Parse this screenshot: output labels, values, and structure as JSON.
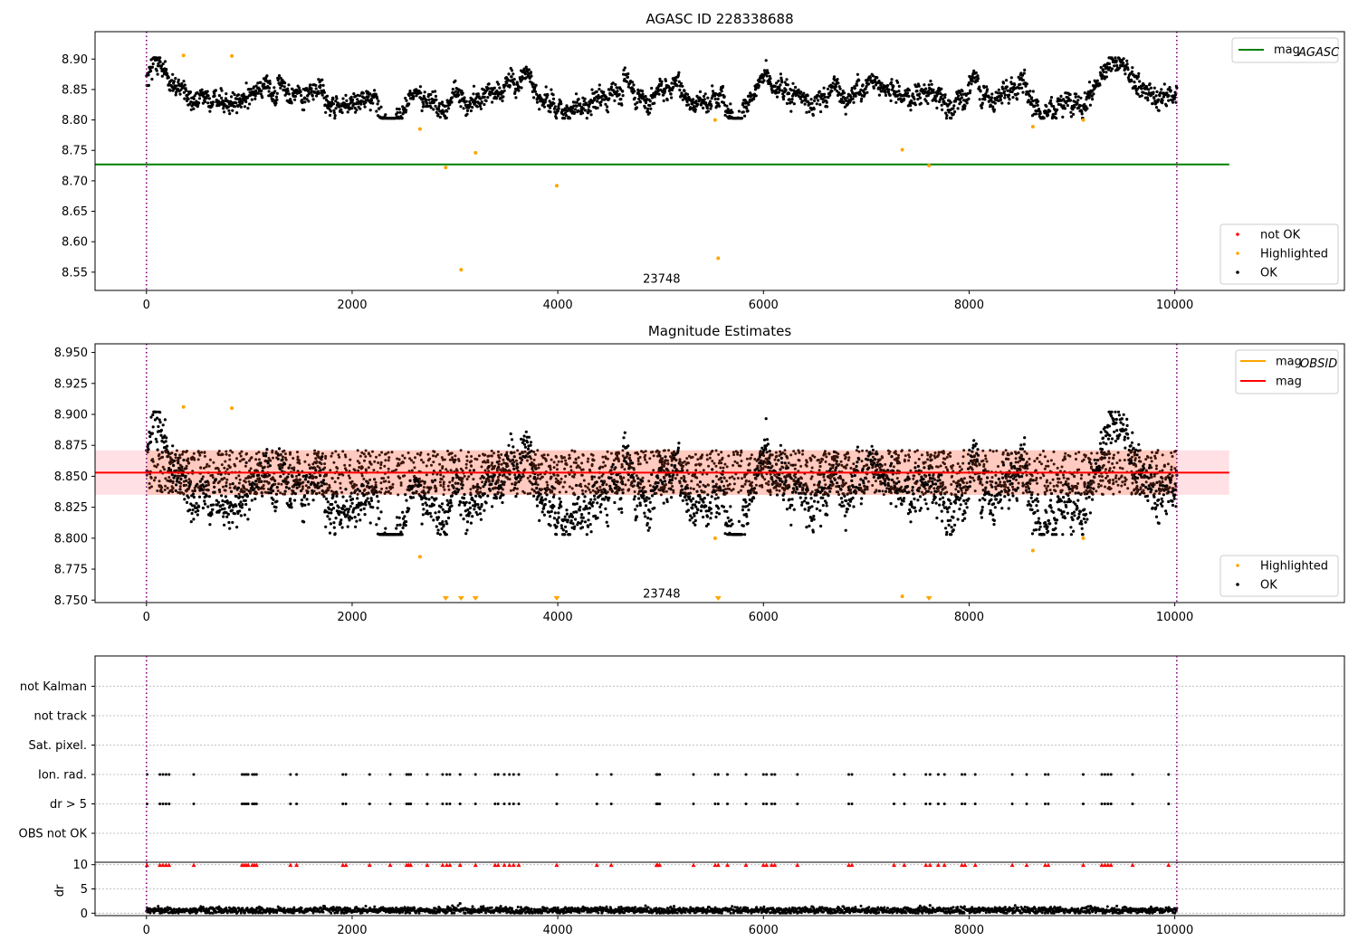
{
  "chart_data": [
    {
      "panel": "top",
      "type": "scatter",
      "title": "AGASC ID 228338688",
      "xlim": [
        -500,
        11650
      ],
      "ylim": [
        8.52,
        8.945
      ],
      "xticks": [
        0,
        2000,
        4000,
        6000,
        8000,
        10000
      ],
      "yticks": [
        8.55,
        8.6,
        8.65,
        8.7,
        8.75,
        8.8,
        8.85,
        8.9
      ],
      "ytick_labels": [
        "8.55",
        "8.60",
        "8.65",
        "8.70",
        "8.75",
        "8.80",
        "8.85",
        "8.90"
      ],
      "obsid_boundaries": [
        0,
        10020
      ],
      "annotation": {
        "text": "23748",
        "x": 5010,
        "y": 8.54
      },
      "mag_agasc": {
        "value": 8.727,
        "x_range": [
          -500,
          10530
        ],
        "color": "#008000"
      },
      "ok_series": {
        "color": "#000000",
        "x_range": [
          0,
          10020
        ],
        "level": 8.855,
        "spread": 0.022
      },
      "highlighted_points": [
        {
          "x": 360,
          "y": 8.906
        },
        {
          "x": 830,
          "y": 8.905
        },
        {
          "x": 2660,
          "y": 8.785
        },
        {
          "x": 2910,
          "y": 8.722
        },
        {
          "x": 3060,
          "y": 8.554
        },
        {
          "x": 3200,
          "y": 8.746
        },
        {
          "x": 3990,
          "y": 8.692
        },
        {
          "x": 5530,
          "y": 8.8
        },
        {
          "x": 5560,
          "y": 8.573
        },
        {
          "x": 7350,
          "y": 8.751
        },
        {
          "x": 7610,
          "y": 8.725
        },
        {
          "x": 8620,
          "y": 8.789
        },
        {
          "x": 9110,
          "y": 8.8
        }
      ],
      "legend_series": {
        "label_main": "mag",
        "label_sub": "AGASC"
      },
      "legend_points": [
        {
          "label": "not OK",
          "color": "#ff0000"
        },
        {
          "label": "Highlighted",
          "color": "#ffa500"
        },
        {
          "label": "OK",
          "color": "#000000"
        }
      ]
    },
    {
      "panel": "middle",
      "type": "scatter",
      "title": "Magnitude Estimates",
      "xlim": [
        -500,
        11650
      ],
      "ylim": [
        8.748,
        8.957
      ],
      "xticks": [
        0,
        2000,
        4000,
        6000,
        8000,
        10000
      ],
      "yticks": [
        8.75,
        8.775,
        8.8,
        8.825,
        8.85,
        8.875,
        8.9,
        8.925,
        8.95
      ],
      "ytick_labels": [
        "8.750",
        "8.775",
        "8.800",
        "8.825",
        "8.850",
        "8.875",
        "8.900",
        "8.925",
        "8.950"
      ],
      "obsid_boundaries": [
        0,
        10020
      ],
      "annotation": {
        "text": "23748",
        "x": 5010,
        "y": 8.7555
      },
      "mag": {
        "value": 8.853,
        "x_range": [
          -500,
          10530
        ],
        "color": "#ff0000"
      },
      "mag_obsid": {
        "value": 8.853,
        "color": "#ffa500"
      },
      "band": {
        "low": 8.835,
        "high": 8.871,
        "x_range": [
          -500,
          10530
        ]
      },
      "ok_series": {
        "color": "#000000",
        "x_range": [
          0,
          10020
        ],
        "level": 8.853,
        "spread": 0.024
      },
      "highlighted_points": [
        {
          "x": 360,
          "y": 8.906
        },
        {
          "x": 830,
          "y": 8.905
        },
        {
          "x": 2660,
          "y": 8.785
        },
        {
          "x": 5530,
          "y": 8.8
        },
        {
          "x": 7350,
          "y": 8.753
        },
        {
          "x": 8620,
          "y": 8.79
        },
        {
          "x": 9110,
          "y": 8.8
        }
      ],
      "clipped_points_x": [
        2910,
        3060,
        3200,
        3990,
        5560,
        7610
      ],
      "legend_series": [
        {
          "label_main": "mag",
          "label_sub": "OBSID",
          "color": "#ffa500"
        },
        {
          "label_main": "mag",
          "label_sub": "",
          "color": "#ff0000"
        }
      ],
      "legend_points": [
        {
          "label": "Highlighted",
          "color": "#ffa500"
        },
        {
          "label": "OK",
          "color": "#000000"
        }
      ]
    },
    {
      "panel": "flags",
      "type": "scatter",
      "xlim": [
        -500,
        11650
      ],
      "obsid_boundaries": [
        0,
        10020
      ],
      "categories": [
        "OBS not OK",
        "dr > 5",
        "Ion. rad.",
        "Sat. pixel.",
        "not track",
        "not Kalman"
      ],
      "flag_x": [
        5,
        130,
        160,
        190,
        220,
        460,
        930,
        950,
        970,
        990,
        1030,
        1050,
        1070,
        1400,
        1460,
        1910,
        1940,
        2170,
        2370,
        2530,
        2550,
        2570,
        2730,
        2880,
        2920,
        2950,
        3050,
        3200,
        3390,
        3420,
        3480,
        3530,
        3570,
        3620,
        3990,
        4380,
        4520,
        4960,
        4970,
        4990,
        5320,
        5530,
        5560,
        5650,
        5830,
        6000,
        6030,
        6080,
        6110,
        6330,
        6830,
        6860,
        7270,
        7370,
        7580,
        7620,
        7700,
        7760,
        7930,
        7960,
        8060,
        8420,
        8560,
        8740,
        8770,
        9110,
        9290,
        9320,
        9350,
        9380,
        9590,
        9940
      ]
    },
    {
      "panel": "dr",
      "type": "scatter",
      "ylabel": "dr",
      "xlim": [
        -500,
        11650
      ],
      "ylim": [
        -0.5,
        10.5
      ],
      "xticks": [
        0,
        2000,
        4000,
        6000,
        8000,
        10000
      ],
      "yticks": [
        0,
        5,
        10
      ],
      "obsid_boundaries": [
        0,
        10020
      ],
      "clip_level": 10,
      "series_level": 0.6,
      "series_spread": 0.35
    }
  ],
  "xtick_labels": [
    "0",
    "2000",
    "4000",
    "6000",
    "8000",
    "10000"
  ],
  "dr_ytick_labels": [
    "0",
    "5",
    "10"
  ]
}
